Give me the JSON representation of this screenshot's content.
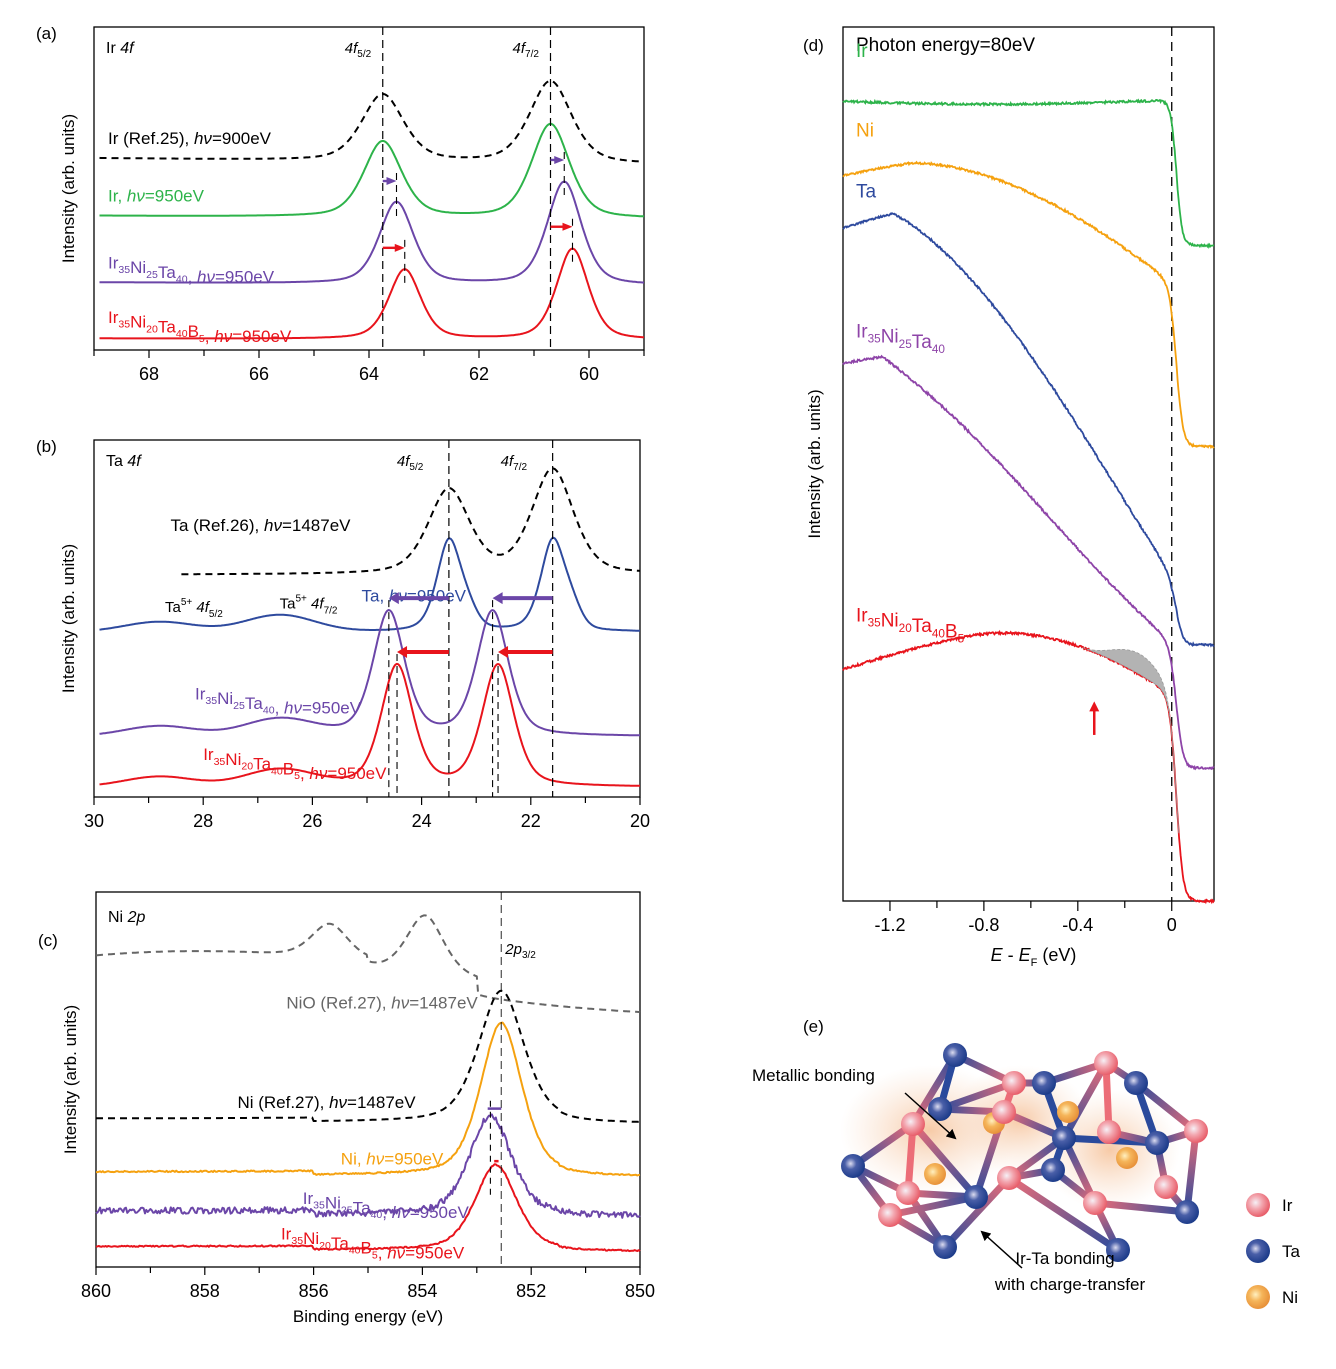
{
  "colors": {
    "ref": "#000000",
    "nio_ref": "#666666",
    "ir": "#2db34a",
    "ni": "#f5a10f",
    "ta": "#2e4a9e",
    "irnita": "#6b46a8",
    "irnitab": "#e8141c",
    "irnita_d": "#8e44a8",
    "shade": "#b3b3b3"
  },
  "chart_data": [
    {
      "id": "a",
      "panel_label": "(a)",
      "type": "line",
      "title": "Ir 4f",
      "title_plain": "Ir ",
      "title_italic": "4f",
      "xlabel": "",
      "ylabel": "Intensity (arb. units)",
      "xlim": [
        69,
        59
      ],
      "x_ticks": [
        68,
        66,
        64,
        62,
        60
      ],
      "x_tick_labels": [
        "68",
        "66",
        "64",
        "62",
        "60"
      ],
      "peak_markers": [
        {
          "label": "4f",
          "sub": "5/2",
          "x": 63.75
        },
        {
          "label": "4f",
          "sub": "7/2",
          "x": 60.7
        }
      ],
      "series": [
        {
          "name": "Ir (Ref.25), hν=900eV",
          "label_parts": [
            "Ir (Ref.25), ",
            "hν",
            "=900eV"
          ],
          "color_key": "ref",
          "dashed": true,
          "peaks": [
            63.75,
            60.7
          ],
          "offset": 0.58,
          "amp": [
            0.22,
            0.27
          ],
          "width": 0.55,
          "baseline_slope": 0.02,
          "x_start": 68.9
        },
        {
          "name": "Ir, hν=950eV",
          "label_parts": [
            "Ir, ",
            "hν",
            "=950eV"
          ],
          "color_key": "ir",
          "peaks": [
            63.75,
            60.7
          ],
          "offset": 0.4,
          "amp": [
            0.25,
            0.31
          ],
          "width": 0.5,
          "baseline_slope": 0.01,
          "x_start": 68.9
        },
        {
          "name": "Ir35Ni25Ta40, hν=950eV",
          "label_parts": [
            "Ir",
            "35",
            "Ni",
            "25",
            "Ta",
            "40",
            ", ",
            "hν",
            "=950eV"
          ],
          "color_key": "irnita",
          "peaks": [
            63.5,
            60.45
          ],
          "offset": 0.18,
          "amp": [
            0.27,
            0.34
          ],
          "width": 0.45,
          "baseline_slope": 0.01,
          "x_start": 68.9
        },
        {
          "name": "Ir35Ni20Ta40B5, hν=950eV",
          "label_parts": [
            "Ir",
            "35",
            "Ni",
            "20",
            "Ta",
            "40",
            "B",
            "5",
            ", ",
            "hν",
            "=950eV"
          ],
          "color_key": "irnitab",
          "peaks": [
            63.35,
            60.3
          ],
          "offset": 0.0,
          "amp": [
            0.23,
            0.3
          ],
          "width": 0.42,
          "baseline_slope": 0.005,
          "x_start": 68.9
        }
      ],
      "shift_arrows": [
        {
          "from": 63.75,
          "to": 63.5,
          "series": "irnita"
        },
        {
          "from": 60.7,
          "to": 60.45,
          "series": "irnita"
        },
        {
          "from": 63.75,
          "to": 63.35,
          "series": "irnitab"
        },
        {
          "from": 60.7,
          "to": 60.3,
          "series": "irnitab"
        }
      ]
    },
    {
      "id": "b",
      "panel_label": "(b)",
      "type": "line",
      "title": "Ta 4f",
      "title_plain": "Ta ",
      "title_italic": "4f",
      "xlabel": "",
      "ylabel": "Intensity (arb. units)",
      "xlim": [
        30,
        20
      ],
      "x_ticks": [
        30,
        28,
        26,
        24,
        22,
        20
      ],
      "x_tick_labels": [
        "30",
        "28",
        "26",
        "24",
        "22",
        "20"
      ],
      "peak_markers": [
        {
          "label": "4f",
          "sub": "5/2",
          "x": 23.5
        },
        {
          "label": "4f",
          "sub": "7/2",
          "x": 21.6
        }
      ],
      "annotations": [
        {
          "text": "Ta",
          "sup": "5+",
          "italic": "4f",
          "sub": "5/2",
          "x": 28.7
        },
        {
          "text": "Ta",
          "sup": "5+",
          "italic": "4f",
          "sub": "7/2",
          "x": 26.6
        }
      ],
      "series": [
        {
          "name": "Ta (Ref.26), hν=1487eV",
          "label_parts": [
            "Ta (Ref.26), ",
            "hν",
            "=1487eV"
          ],
          "color_key": "ref",
          "dashed": true,
          "peaks": [
            23.5,
            21.6
          ],
          "offset": 0.63,
          "amp": [
            0.25,
            0.31
          ],
          "width": 0.55,
          "x_start": 28.4
        },
        {
          "name": "Ta, hν=950eV",
          "label_parts": [
            "Ta, ",
            "hν",
            "=950eV"
          ],
          "color_key": "ta",
          "peaks": [
            23.5,
            21.6
          ],
          "offset": 0.46,
          "amp": [
            0.27,
            0.27
          ],
          "width": 0.32,
          "x_start": 29.9
        },
        {
          "name": "Ir35Ni25Ta40, hν=950eV",
          "label_parts": [
            "Ir",
            "35",
            "Ni",
            "25",
            "Ta",
            "40",
            ", ",
            "hν",
            "=950eV"
          ],
          "color_key": "irnita",
          "peaks": [
            24.6,
            22.7
          ],
          "offset": 0.15,
          "amp": [
            0.37,
            0.37
          ],
          "width": 0.42,
          "x_start": 29.9
        },
        {
          "name": "Ir35Ni20Ta40B5, hν=950eV",
          "label_parts": [
            "Ir",
            "35",
            "Ni",
            "20",
            "Ta",
            "40",
            "B",
            "5",
            ", ",
            "hν",
            "=950eV"
          ],
          "color_key": "irnitab",
          "peaks": [
            24.45,
            22.6
          ],
          "offset": 0.0,
          "amp": [
            0.36,
            0.36
          ],
          "width": 0.42,
          "x_start": 29.9
        }
      ],
      "shift_arrows": [
        {
          "from": 23.5,
          "to": 24.6,
          "series": "irnita"
        },
        {
          "from": 21.6,
          "to": 22.7,
          "series": "irnita"
        },
        {
          "from": 23.5,
          "to": 24.45,
          "series": "irnitab"
        },
        {
          "from": 21.6,
          "to": 22.6,
          "series": "irnitab"
        }
      ]
    },
    {
      "id": "c",
      "panel_label": "(c)",
      "type": "line",
      "title": "Ni 2p",
      "title_plain": "Ni ",
      "title_italic": "2p",
      "xlabel": "Binding energy (eV)",
      "ylabel": "Intensity (arb. units)",
      "xlim": [
        860,
        850
      ],
      "x_ticks": [
        860,
        858,
        856,
        854,
        852,
        850
      ],
      "x_tick_labels": [
        "860",
        "858",
        "856",
        "854",
        "852",
        "850"
      ],
      "peak_markers": [
        {
          "label": "2p",
          "sub": "3/2",
          "x": 852.55
        }
      ],
      "series": [
        {
          "name": "NiO (Ref.27), hν=1487eV",
          "label_parts": [
            "NiO (Ref.27), ",
            "hν",
            "=1487eV"
          ],
          "color_key": "nio_ref",
          "dashed": true,
          "peaks": [
            853.95,
            855.7
          ],
          "offset": 0.78,
          "amp": [
            0.17,
            0.1
          ],
          "width": 0.5,
          "x_start": 860
        },
        {
          "name": "Ni (Ref.27), hν=1487eV",
          "label_parts": [
            "Ni (Ref.27), ",
            "hν",
            "=1487eV"
          ],
          "color_key": "ref",
          "dashed": true,
          "peaks": [
            852.55
          ],
          "offset": 0.38,
          "amp": [
            0.37
          ],
          "width": 0.6,
          "x_start": 860
        },
        {
          "name": "Ni, hν=950eV",
          "label_parts": [
            "Ni, ",
            "hν",
            "=950eV"
          ],
          "color_key": "ni",
          "peaks": [
            852.55
          ],
          "offset": 0.23,
          "amp": [
            0.43
          ],
          "width": 0.55,
          "x_start": 860
        },
        {
          "name": "Ir35Ni25Ta40, hν=950eV",
          "label_parts": [
            "Ir",
            "35",
            "Ni",
            "25",
            "Ta",
            "40",
            ", ",
            "hν",
            "=950eV"
          ],
          "color_key": "irnita",
          "noisy": true,
          "peaks": [
            852.75
          ],
          "offset": 0.12,
          "amp": [
            0.28
          ],
          "width": 0.55,
          "x_start": 860
        },
        {
          "name": "Ir35Ni20Ta40B5, hν=950eV",
          "label_parts": [
            "Ir",
            "35",
            "Ni",
            "20",
            "Ta",
            "40",
            "B",
            "5",
            ", ",
            "hν",
            "=950eV"
          ],
          "color_key": "irnitab",
          "peaks": [
            852.65
          ],
          "offset": 0.02,
          "amp": [
            0.24
          ],
          "width": 0.55,
          "x_start": 860
        }
      ]
    },
    {
      "id": "d",
      "panel_label": "(d)",
      "type": "line",
      "title": "Photon energy=80eV",
      "xlabel": "E - EF (eV)",
      "xlabel_parts": [
        "E",
        " - ",
        "E",
        "F",
        " (eV)"
      ],
      "ylabel": "Intensity (arb. units)",
      "xlim": [
        -1.4,
        0.18
      ],
      "x_ticks": [
        -1.2,
        -0.8,
        -0.4,
        0
      ],
      "x_minor_ticks": [
        -1.0,
        -0.6,
        -0.2
      ],
      "x_tick_labels": [
        "-1.2",
        "-0.8",
        "-0.4",
        "0"
      ],
      "fermi_level": 0,
      "series": [
        {
          "name": "Ir",
          "label_parts": [
            "Ir"
          ],
          "color_key": "ir",
          "top": 0.915,
          "bottom": 0.75,
          "shape": "flat"
        },
        {
          "name": "Ni",
          "label_parts": [
            "Ni"
          ],
          "color_key": "ni",
          "top": 0.83,
          "bottom": 0.52,
          "shape": "ni"
        },
        {
          "name": "Ta",
          "label_parts": [
            "Ta"
          ],
          "color_key": "ta",
          "top": 0.77,
          "bottom": 0.293,
          "shape": "ta"
        },
        {
          "name": "Ir35Ni25Ta40",
          "label_parts": [
            "Ir",
            "35",
            "Ni",
            "25",
            "Ta",
            "40"
          ],
          "color_key": "irnita_d",
          "top": 0.615,
          "bottom": 0.152,
          "shape": "irnita"
        },
        {
          "name": "Ir35Ni20Ta40B5",
          "label_parts": [
            "Ir",
            "35",
            "Ni",
            "20",
            "Ta",
            "40",
            "B",
            "5"
          ],
          "color_key": "irnitab",
          "top": 0.265,
          "bottom": 0.0,
          "shape": "irnitab"
        }
      ],
      "shaded_region": {
        "from": -0.38,
        "to": 0.0,
        "color_key": "shade"
      },
      "arrow_at": -0.33
    }
  ],
  "diagram": {
    "panel_label": "(e)",
    "annotations": [
      "Metallic bonding",
      "Ir-Ta bonding",
      "with charge-transfer"
    ],
    "legend": [
      {
        "label": "Ir",
        "color": "#f0727a"
      },
      {
        "label": "Ta",
        "color": "#24468f"
      },
      {
        "label": "Ni",
        "color": "#f2a34a"
      }
    ]
  }
}
